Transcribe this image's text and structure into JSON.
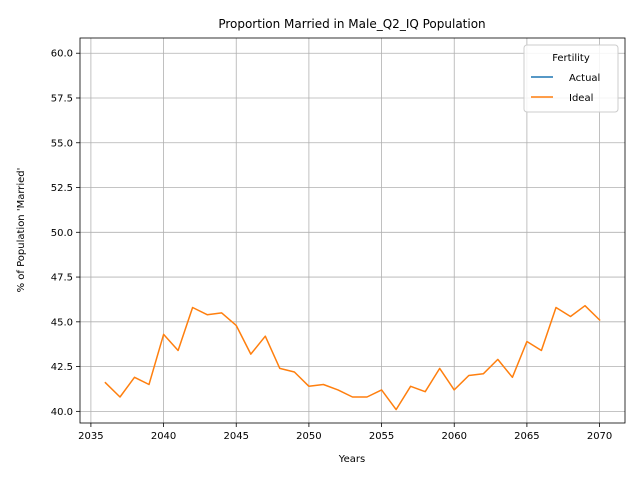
{
  "chart_data": {
    "type": "line",
    "title": "Proportion Married in Male_Q2_IQ Population",
    "xlabel": "Years",
    "ylabel": "% of Population 'Married'",
    "xlim": [
      2034.25,
      2071.75
    ],
    "ylim": [
      39.35,
      60.85
    ],
    "xticks": [
      2035,
      2040,
      2045,
      2050,
      2055,
      2060,
      2065,
      2070
    ],
    "yticks": [
      40.0,
      42.5,
      45.0,
      47.5,
      50.0,
      52.5,
      55.0,
      57.5,
      60.0
    ],
    "ytick_labels": [
      "40.0",
      "42.5",
      "45.0",
      "47.5",
      "50.0",
      "52.5",
      "55.0",
      "57.5",
      "60.0"
    ],
    "grid": true,
    "legend": {
      "title": "Fertility",
      "position": "top-right"
    },
    "series": [
      {
        "name": "Actual",
        "color": "#1f77b4",
        "x": [],
        "y": []
      },
      {
        "name": "Ideal",
        "color": "#ff7f0e",
        "x": [
          2036,
          2037,
          2038,
          2039,
          2040,
          2041,
          2042,
          2043,
          2044,
          2045,
          2046,
          2047,
          2048,
          2049,
          2050,
          2051,
          2052,
          2053,
          2054,
          2055,
          2056,
          2057,
          2058,
          2059,
          2060,
          2061,
          2062,
          2063,
          2064,
          2065,
          2066,
          2067,
          2068,
          2069,
          2070
        ],
        "y": [
          41.6,
          40.8,
          41.9,
          41.5,
          44.3,
          43.4,
          45.8,
          45.4,
          45.5,
          44.8,
          43.2,
          44.2,
          42.4,
          42.2,
          41.4,
          41.5,
          41.2,
          40.8,
          40.8,
          41.2,
          40.1,
          41.4,
          41.1,
          42.4,
          41.2,
          42.0,
          42.1,
          42.9,
          41.9,
          43.9,
          43.4,
          45.8,
          45.3,
          45.9,
          45.1
        ]
      }
    ]
  }
}
